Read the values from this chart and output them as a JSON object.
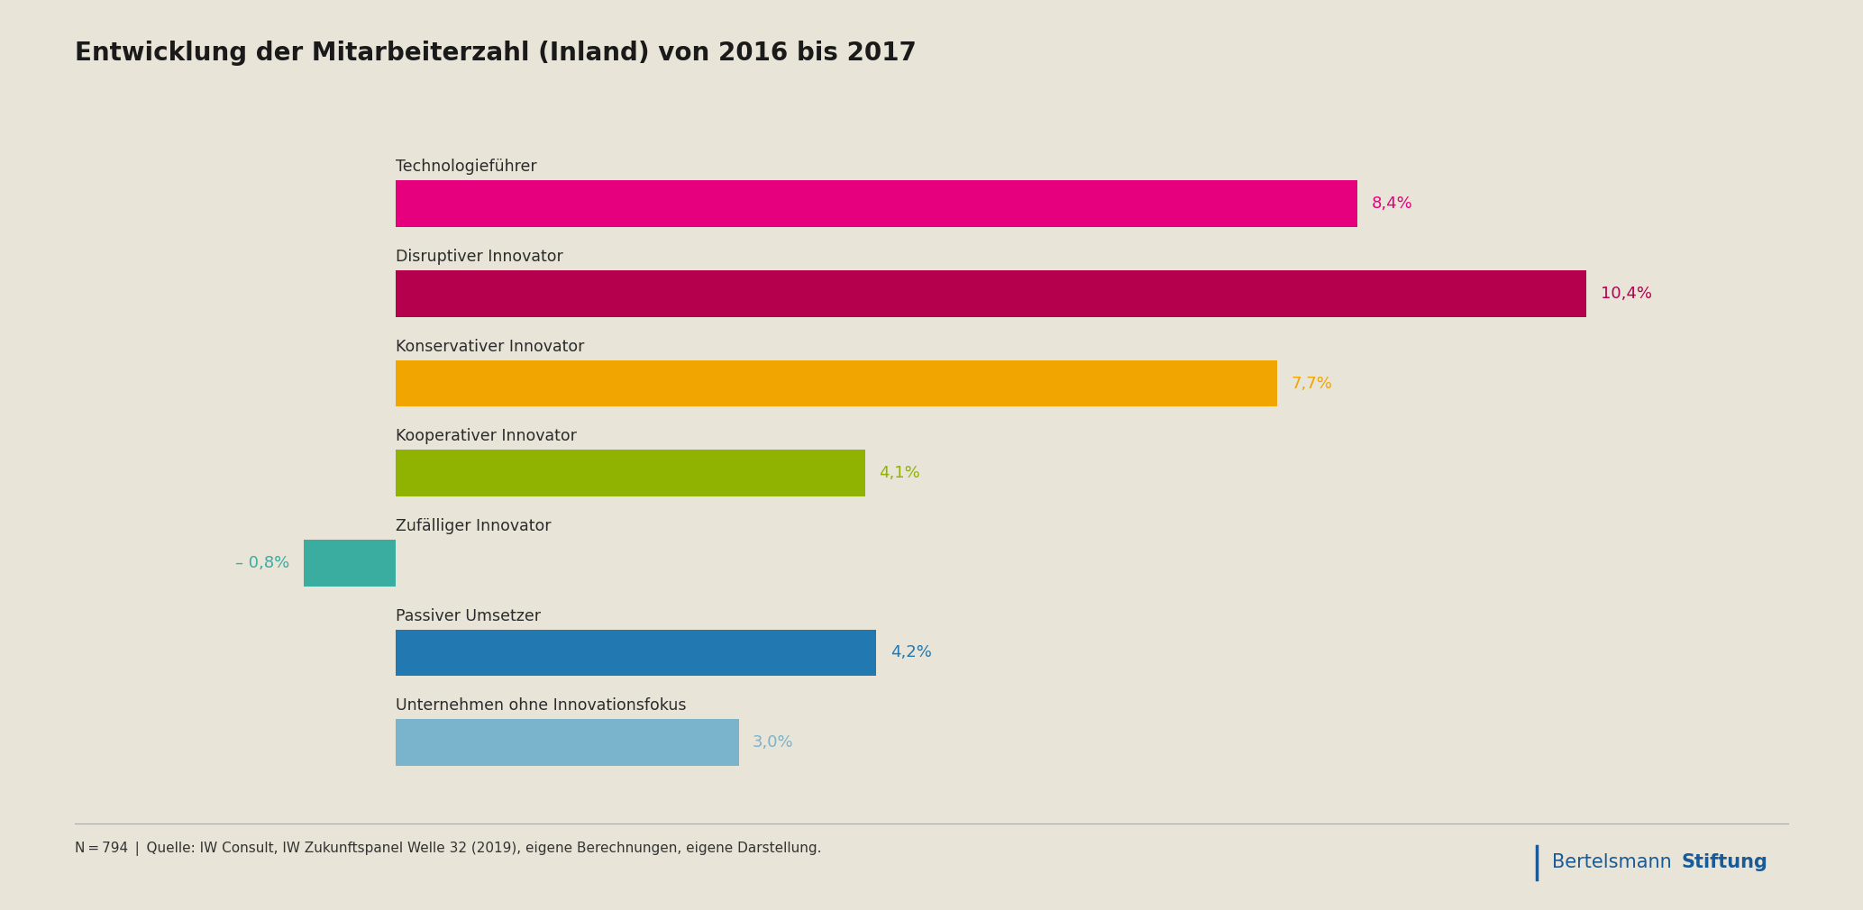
{
  "title": "Entwicklung der Mitarbeiterzahl (Inland) von 2016 bis 2017",
  "background_color": "#e8e4d8",
  "categories": [
    "Technologieführer",
    "Disruptiver Innovator",
    "Konservativer Innovator",
    "Kooperativer Innovator",
    "Zufälliger Innovator",
    "Passiver Umsetzer",
    "Unternehmen ohne Innovationsfokus"
  ],
  "values": [
    8.4,
    10.4,
    7.7,
    4.1,
    -0.8,
    4.2,
    3.0
  ],
  "bar_colors": [
    "#e6007e",
    "#b5004e",
    "#f0a500",
    "#8fb300",
    "#3aada0",
    "#2278b0",
    "#7ab3cc"
  ],
  "label_colors": [
    "#e6007e",
    "#b5004e",
    "#f0a500",
    "#8fb300",
    "#3aada0",
    "#2278b0",
    "#7ab3cc"
  ],
  "labels": [
    "8,4%",
    "10,4%",
    "7,7%",
    "4,1%",
    "– 0,8%",
    "4,2%",
    "3,0%"
  ],
  "footer_text": "N = 794 | Quelle: IW Consult, IW Zukunftspanel Welle 32 (2019), eigene Berechnungen, eigene Darstellung.",
  "logo_text_normal": "Bertelsmann",
  "logo_text_bold": "Stiftung",
  "logo_color": "#1a5a96",
  "xlim": [
    -1.5,
    12.0
  ],
  "bar_height": 0.52,
  "label_fontsize": 13,
  "title_fontsize": 20,
  "category_fontsize": 12.5,
  "footer_fontsize": 11
}
